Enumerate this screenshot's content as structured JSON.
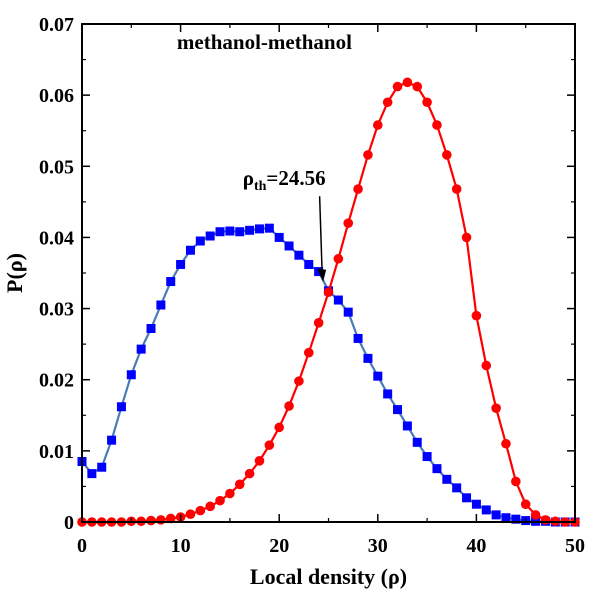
{
  "chart_data": {
    "type": "line",
    "title": "methanol-methanol",
    "xlabel": "Local density (ρ)",
    "ylabel": "P(ρ)",
    "xlim": [
      0,
      50
    ],
    "ylim": [
      0,
      0.07
    ],
    "xticks": [
      "0",
      "10",
      "20",
      "30",
      "40",
      "50"
    ],
    "yticks": [
      "0",
      "0.01",
      "0.02",
      "0.03",
      "0.04",
      "0.05",
      "0.06",
      "0.07"
    ],
    "grid": false,
    "annotation": {
      "symbol": "ρ",
      "subscript": "th",
      "value_text": "=24.56",
      "x": 24.56,
      "y": 0.0325
    },
    "series": [
      {
        "color": "#0000ff",
        "line_color": "#4a7bb7",
        "marker": "square",
        "x": [
          0,
          1,
          2,
          3,
          4,
          5,
          6,
          7,
          8,
          9,
          10,
          11,
          12,
          13,
          14,
          15,
          16,
          17,
          18,
          19,
          20,
          21,
          22,
          23,
          24,
          25,
          26,
          27,
          28,
          29,
          30,
          31,
          32,
          33,
          34,
          35,
          36,
          37,
          38,
          39,
          40,
          41,
          42,
          43,
          44,
          45,
          46,
          47,
          48,
          49,
          50
        ],
        "y": [
          0.0085,
          0.0068,
          0.0077,
          0.0115,
          0.0162,
          0.0207,
          0.0243,
          0.0272,
          0.0305,
          0.0338,
          0.0362,
          0.0382,
          0.0395,
          0.0402,
          0.0408,
          0.0409,
          0.0408,
          0.041,
          0.0412,
          0.0413,
          0.04,
          0.0388,
          0.0375,
          0.0362,
          0.0352,
          0.0325,
          0.0312,
          0.0295,
          0.0258,
          0.023,
          0.0205,
          0.018,
          0.0158,
          0.0135,
          0.0112,
          0.0092,
          0.0075,
          0.006,
          0.0048,
          0.0034,
          0.0025,
          0.0017,
          0.001,
          0.0006,
          0.0004,
          0.0002,
          0.0001,
          0.0001,
          0.0,
          0.0,
          0.0
        ]
      },
      {
        "color": "#ff0000",
        "line_color": "#ff0000",
        "marker": "circle",
        "x": [
          0,
          1,
          2,
          3,
          4,
          5,
          6,
          7,
          8,
          9,
          10,
          11,
          12,
          13,
          14,
          15,
          16,
          17,
          18,
          19,
          20,
          21,
          22,
          23,
          24,
          25,
          26,
          27,
          28,
          29,
          30,
          31,
          32,
          33,
          34,
          35,
          36,
          37,
          38,
          39,
          40,
          41,
          42,
          43,
          44,
          45,
          46,
          47,
          48,
          49,
          50
        ],
        "y": [
          0.0,
          0.0,
          0.0,
          0.0,
          0.0,
          0.0001,
          0.0001,
          0.0002,
          0.0003,
          0.0005,
          0.0007,
          0.0011,
          0.0016,
          0.0022,
          0.003,
          0.004,
          0.0053,
          0.0068,
          0.0086,
          0.0108,
          0.0133,
          0.0163,
          0.0198,
          0.0238,
          0.028,
          0.0323,
          0.037,
          0.042,
          0.0468,
          0.0516,
          0.0558,
          0.059,
          0.0612,
          0.0618,
          0.0612,
          0.059,
          0.0558,
          0.0516,
          0.0468,
          0.04,
          0.029,
          0.022,
          0.016,
          0.011,
          0.0057,
          0.0025,
          0.001,
          0.0003,
          0.0001,
          0.0,
          0.0
        ]
      }
    ]
  }
}
